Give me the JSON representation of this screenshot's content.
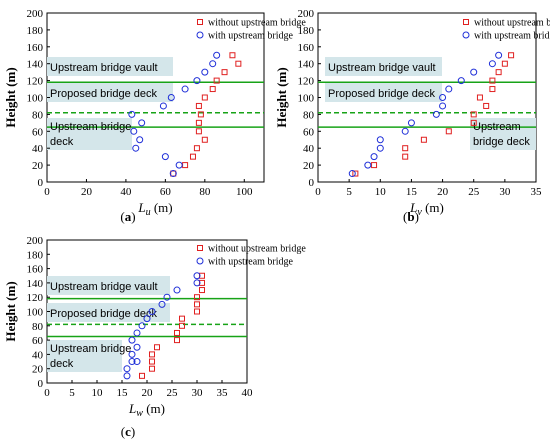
{
  "colors": {
    "without": "#e02020",
    "with": "#1f2fd8",
    "lines": "#17a317",
    "box_fill": "#d4e6ea"
  },
  "chart_data": [
    {
      "type": "scatter",
      "caption": "(a)",
      "xlabel": "L",
      "xsub": "u",
      "xunit": " (m)",
      "ylabel": "Height (m)",
      "xlim": [
        0,
        110
      ],
      "ylim": [
        0,
        200
      ],
      "xticks": [
        0,
        20,
        40,
        60,
        80,
        100
      ],
      "yticks": [
        0,
        20,
        40,
        60,
        80,
        100,
        120,
        140,
        160,
        180,
        200
      ],
      "series": [
        {
          "name": "without upstream bridge",
          "marker": "square",
          "points": [
            [
              64,
              10
            ],
            [
              70,
              20
            ],
            [
              74,
              30
            ],
            [
              76,
              40
            ],
            [
              77,
              60
            ],
            [
              80,
              50
            ],
            [
              77,
              70
            ],
            [
              78,
              80
            ],
            [
              77,
              90
            ],
            [
              80,
              100
            ],
            [
              84,
              110
            ],
            [
              86,
              120
            ],
            [
              90,
              130
            ],
            [
              94,
              150
            ],
            [
              97,
              140
            ]
          ]
        },
        {
          "name": "with upstream bridge",
          "marker": "circle",
          "points": [
            [
              64,
              10
            ],
            [
              67,
              20
            ],
            [
              60,
              30
            ],
            [
              45,
              40
            ],
            [
              47,
              50
            ],
            [
              44,
              60
            ],
            [
              48,
              70
            ],
            [
              43,
              80
            ],
            [
              59,
              90
            ],
            [
              63,
              100
            ],
            [
              70,
              110
            ],
            [
              76,
              120
            ],
            [
              80,
              130
            ],
            [
              84,
              140
            ],
            [
              86,
              150
            ]
          ]
        }
      ],
      "hlines": [
        118,
        82,
        65
      ],
      "hline_styles": [
        "solid",
        "dashed",
        "solid"
      ],
      "labels": [
        {
          "text": "Upstream bridge vault"
        },
        {
          "text": "Proposed bridge deck"
        },
        {
          "text": "Upstream bridge",
          "text2": "deck"
        }
      ]
    },
    {
      "type": "scatter",
      "caption": "(b)",
      "xlabel": "L",
      "xsub": "v",
      "xunit": " (m)",
      "ylabel": "Height (m)",
      "xlim": [
        0,
        35
      ],
      "ylim": [
        0,
        200
      ],
      "xticks": [
        0,
        5,
        10,
        15,
        20,
        25,
        30,
        35
      ],
      "yticks": [
        0,
        20,
        40,
        60,
        80,
        100,
        120,
        140,
        160,
        180,
        200
      ],
      "series": [
        {
          "name": "without upstream bridge",
          "marker": "square",
          "points": [
            [
              6,
              10
            ],
            [
              9,
              20
            ],
            [
              14,
              30
            ],
            [
              14,
              40
            ],
            [
              17,
              50
            ],
            [
              21,
              60
            ],
            [
              25,
              70
            ],
            [
              25,
              80
            ],
            [
              26,
              100
            ],
            [
              28,
              110
            ],
            [
              28,
              120
            ],
            [
              29,
              130
            ],
            [
              30,
              140
            ],
            [
              31,
              150
            ],
            [
              27,
              90
            ]
          ]
        },
        {
          "name": "with upstream bridge",
          "marker": "circle",
          "points": [
            [
              5.5,
              10
            ],
            [
              8,
              20
            ],
            [
              9,
              30
            ],
            [
              10,
              40
            ],
            [
              10,
              50
            ],
            [
              14,
              60
            ],
            [
              15,
              70
            ],
            [
              19,
              80
            ],
            [
              20,
              90
            ],
            [
              20,
              100
            ],
            [
              21,
              110
            ],
            [
              23,
              120
            ],
            [
              25,
              130
            ],
            [
              28,
              140
            ],
            [
              29,
              150
            ]
          ]
        }
      ],
      "hlines": [
        118,
        82,
        65
      ],
      "hline_styles": [
        "solid",
        "dashed",
        "solid"
      ],
      "labels": [
        {
          "text": "Upstream bridge vault"
        },
        {
          "text": "Proposed bridge deck"
        },
        {
          "text": "Upstream",
          "text2": "bridge deck"
        }
      ]
    },
    {
      "type": "scatter",
      "caption": "(c)",
      "xlabel": "L",
      "xsub": "w",
      "xunit": " (m)",
      "ylabel": "Height (m)",
      "xlim": [
        0,
        40
      ],
      "ylim": [
        0,
        200
      ],
      "xticks": [
        0,
        5,
        10,
        15,
        20,
        25,
        30,
        35,
        40
      ],
      "yticks": [
        0,
        20,
        40,
        60,
        80,
        100,
        120,
        140,
        160,
        180,
        200
      ],
      "series": [
        {
          "name": "without upstream bridge",
          "marker": "square",
          "points": [
            [
              19,
              10
            ],
            [
              21,
              20
            ],
            [
              21,
              30
            ],
            [
              21,
              40
            ],
            [
              22,
              50
            ],
            [
              26,
              60
            ],
            [
              26,
              70
            ],
            [
              27,
              80
            ],
            [
              27,
              90
            ],
            [
              30,
              100
            ],
            [
              30,
              110
            ],
            [
              30,
              120
            ],
            [
              31,
              130
            ],
            [
              31,
              140
            ],
            [
              31,
              150
            ]
          ]
        },
        {
          "name": "with upstream bridge",
          "marker": "circle",
          "points": [
            [
              16,
              10
            ],
            [
              16,
              20
            ],
            [
              17,
              30
            ],
            [
              18,
              30
            ],
            [
              17,
              40
            ],
            [
              18,
              50
            ],
            [
              17,
              60
            ],
            [
              18,
              70
            ],
            [
              19,
              80
            ],
            [
              20,
              90
            ],
            [
              21,
              100
            ],
            [
              23,
              110
            ],
            [
              24,
              120
            ],
            [
              26,
              130
            ],
            [
              30,
              140
            ],
            [
              30,
              150
            ]
          ]
        }
      ],
      "hlines": [
        118,
        82,
        65
      ],
      "hline_styles": [
        "solid",
        "dashed",
        "solid"
      ],
      "labels": [
        {
          "text": "Upstream bridge vault"
        },
        {
          "text": "Proposed bridge deck"
        },
        {
          "text": "Upstream bridge",
          "text2": "deck"
        }
      ]
    }
  ]
}
